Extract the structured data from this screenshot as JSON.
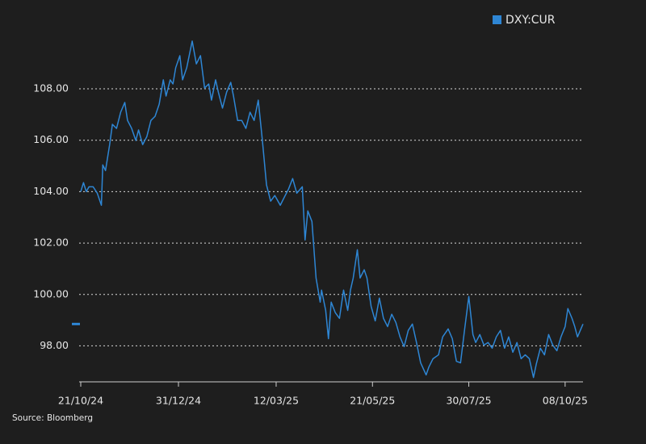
{
  "chart_data": {
    "type": "line",
    "legend": "top-right",
    "grid": true,
    "source": "Source: Bloomberg",
    "xlim": [
      "2024-10-21",
      "2025-10-21"
    ],
    "ylim": [
      96.6,
      110.2
    ],
    "yticks": [
      {
        "value": 98,
        "label": "98.00"
      },
      {
        "value": 100,
        "label": "100.00"
      },
      {
        "value": 102,
        "label": "102.00"
      },
      {
        "value": 104,
        "label": "104.00"
      },
      {
        "value": 106,
        "label": "106.00"
      },
      {
        "value": 108,
        "label": "108.00"
      }
    ],
    "xticks": [
      {
        "value": "2024-10-21",
        "label": "21/10/24"
      },
      {
        "value": "2024-12-31",
        "label": "31/12/24"
      },
      {
        "value": "2025-03-12",
        "label": "12/03/25"
      },
      {
        "value": "2025-05-21",
        "label": "21/05/25"
      },
      {
        "value": "2025-07-30",
        "label": "30/07/25"
      },
      {
        "value": "2025-10-08",
        "label": "08/10/25"
      }
    ],
    "x": [
      "2024-10-21",
      "2024-10-23",
      "2024-10-25",
      "2024-10-27",
      "2024-10-30",
      "2024-11-02",
      "2024-11-05",
      "2024-11-06",
      "2024-11-08",
      "2024-11-11",
      "2024-11-13",
      "2024-11-16",
      "2024-11-19",
      "2024-11-22",
      "2024-11-24",
      "2024-11-27",
      "2024-11-30",
      "2024-12-02",
      "2024-12-05",
      "2024-12-08",
      "2024-12-11",
      "2024-12-14",
      "2024-12-17",
      "2024-12-20",
      "2024-12-22",
      "2024-12-25",
      "2024-12-27",
      "2024-12-29",
      "2025-01-01",
      "2025-01-03",
      "2025-01-06",
      "2025-01-10",
      "2025-01-13",
      "2025-01-16",
      "2025-01-19",
      "2025-01-22",
      "2025-01-24",
      "2025-01-27",
      "2025-01-29",
      "2025-02-01",
      "2025-02-04",
      "2025-02-07",
      "2025-02-09",
      "2025-02-12",
      "2025-02-15",
      "2025-02-18",
      "2025-02-21",
      "2025-02-24",
      "2025-02-27",
      "2025-03-02",
      "2025-03-05",
      "2025-03-08",
      "2025-03-11",
      "2025-03-15",
      "2025-03-18",
      "2025-03-21",
      "2025-03-24",
      "2025-03-27",
      "2025-03-31",
      "2025-04-02",
      "2025-04-04",
      "2025-04-07",
      "2025-04-10",
      "2025-04-13",
      "2025-04-14",
      "2025-04-17",
      "2025-04-19",
      "2025-04-21",
      "2025-04-24",
      "2025-04-27",
      "2025-04-30",
      "2025-05-03",
      "2025-05-05",
      "2025-05-07",
      "2025-05-10",
      "2025-05-12",
      "2025-05-15",
      "2025-05-17",
      "2025-05-20",
      "2025-05-23",
      "2025-05-26",
      "2025-05-29",
      "2025-06-01",
      "2025-06-04",
      "2025-06-07",
      "2025-06-10",
      "2025-06-13",
      "2025-06-16",
      "2025-06-19",
      "2025-06-22",
      "2025-06-25",
      "2025-06-29",
      "2025-07-01",
      "2025-07-04",
      "2025-07-08",
      "2025-07-11",
      "2025-07-15",
      "2025-07-18",
      "2025-07-21",
      "2025-07-24",
      "2025-07-27",
      "2025-07-30",
      "2025-08-02",
      "2025-08-04",
      "2025-08-07",
      "2025-08-10",
      "2025-08-13",
      "2025-08-16",
      "2025-08-19",
      "2025-08-22",
      "2025-08-25",
      "2025-08-28",
      "2025-08-31",
      "2025-09-03",
      "2025-09-06",
      "2025-09-09",
      "2025-09-12",
      "2025-09-15",
      "2025-09-17",
      "2025-09-20",
      "2025-09-23",
      "2025-09-26",
      "2025-09-29",
      "2025-10-02",
      "2025-10-05",
      "2025-10-08",
      "2025-10-10",
      "2025-10-13",
      "2025-10-15",
      "2025-10-17",
      "2025-10-19",
      "2025-10-21"
    ],
    "series": [
      {
        "name": "DXY:CUR",
        "color": "#2e86d4",
        "values": [
          104.0,
          104.35,
          104.0,
          104.19,
          104.19,
          103.94,
          103.47,
          105.04,
          104.82,
          105.83,
          106.62,
          106.46,
          107.09,
          107.47,
          106.77,
          106.46,
          105.99,
          106.4,
          105.83,
          106.14,
          106.77,
          106.93,
          107.4,
          108.35,
          107.72,
          108.35,
          108.19,
          108.82,
          109.29,
          108.35,
          108.82,
          109.86,
          108.97,
          109.29,
          108.03,
          108.19,
          107.56,
          108.35,
          107.87,
          107.25,
          107.87,
          108.25,
          107.72,
          106.77,
          106.77,
          106.46,
          107.09,
          106.77,
          107.56,
          105.99,
          104.26,
          103.63,
          103.85,
          103.47,
          103.79,
          104.1,
          104.51,
          103.94,
          104.19,
          102.12,
          103.25,
          102.84,
          100.64,
          99.7,
          100.17,
          99.38,
          98.28,
          99.7,
          99.29,
          99.07,
          100.17,
          99.38,
          100.17,
          100.64,
          101.74,
          100.64,
          100.96,
          100.64,
          99.54,
          98.97,
          99.86,
          99.07,
          98.75,
          99.23,
          98.91,
          98.35,
          97.97,
          98.6,
          98.85,
          98.13,
          97.34,
          96.87,
          97.18,
          97.5,
          97.65,
          98.35,
          98.66,
          98.28,
          97.4,
          97.34,
          98.66,
          99.92,
          98.44,
          98.13,
          98.44,
          98.03,
          98.13,
          97.91,
          98.35,
          98.6,
          97.91,
          98.35,
          97.75,
          98.13,
          97.5,
          97.65,
          97.5,
          96.77,
          97.28,
          97.91,
          97.65,
          98.44,
          98.03,
          97.81,
          98.35,
          98.75,
          99.45,
          99.07,
          98.75,
          98.35,
          98.6,
          98.85
        ]
      }
    ]
  }
}
